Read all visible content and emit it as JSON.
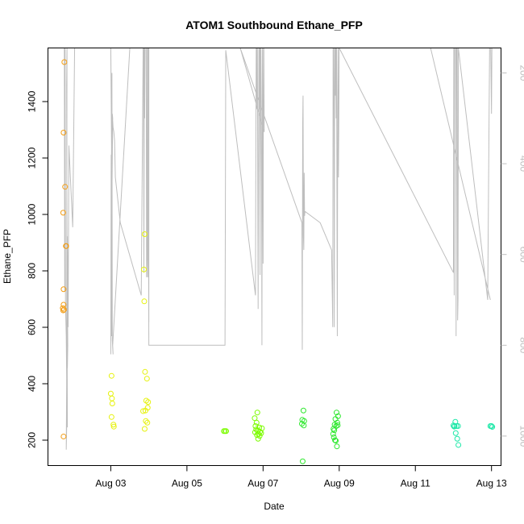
{
  "chart_data": {
    "type": "scatter",
    "title": "ATOM1 Southbound Ethane_PFP",
    "xlabel": "Date",
    "ylabel": "Ethane_PFP",
    "xlim": [
      1.35,
      13.25
    ],
    "ylim": [
      110,
      1590
    ],
    "x_ticks": [
      {
        "value": 3,
        "label": "Aug 03"
      },
      {
        "value": 5,
        "label": "Aug 05"
      },
      {
        "value": 7,
        "label": "Aug 07"
      },
      {
        "value": 9,
        "label": "Aug 09"
      },
      {
        "value": 11,
        "label": "Aug 11"
      },
      {
        "value": 13,
        "label": "Aug 13"
      }
    ],
    "y_ticks": [
      200,
      400,
      600,
      800,
      1000,
      1200,
      1400
    ],
    "right_axis": {
      "ylim": [
        1065,
        145
      ],
      "ticks": [
        200,
        400,
        600,
        800,
        1000
      ],
      "color": "#bebebe"
    },
    "points": [
      {
        "x": 1.78,
        "y": 1540,
        "color": "#f39c12"
      },
      {
        "x": 1.76,
        "y": 1290,
        "color": "#f39c12"
      },
      {
        "x": 1.8,
        "y": 1098,
        "color": "#f39c12"
      },
      {
        "x": 1.75,
        "y": 1006,
        "color": "#f39c12"
      },
      {
        "x": 1.82,
        "y": 888,
        "color": "#f39c12"
      },
      {
        "x": 1.83,
        "y": 888,
        "color": "#f39c12"
      },
      {
        "x": 1.76,
        "y": 735,
        "color": "#f39c12"
      },
      {
        "x": 1.76,
        "y": 680,
        "color": "#f39c12"
      },
      {
        "x": 1.74,
        "y": 668,
        "color": "#f39c12"
      },
      {
        "x": 1.77,
        "y": 663,
        "color": "#f39c12"
      },
      {
        "x": 1.75,
        "y": 660,
        "color": "#f39c12"
      },
      {
        "x": 1.76,
        "y": 213,
        "color": "#f39c12"
      },
      {
        "x": 3.02,
        "y": 428,
        "color": "#e6f20d"
      },
      {
        "x": 3.0,
        "y": 365,
        "color": "#e6f20d"
      },
      {
        "x": 3.03,
        "y": 348,
        "color": "#e6f20d"
      },
      {
        "x": 3.04,
        "y": 330,
        "color": "#e6f20d"
      },
      {
        "x": 3.02,
        "y": 282,
        "color": "#e6f20d"
      },
      {
        "x": 3.07,
        "y": 255,
        "color": "#e6f20d"
      },
      {
        "x": 3.08,
        "y": 248,
        "color": "#e6f20d"
      },
      {
        "x": 3.89,
        "y": 930,
        "color": "#e6f20d"
      },
      {
        "x": 3.87,
        "y": 805,
        "color": "#e6f20d"
      },
      {
        "x": 3.88,
        "y": 692,
        "color": "#e6f20d"
      },
      {
        "x": 3.9,
        "y": 442,
        "color": "#e6f20d"
      },
      {
        "x": 3.95,
        "y": 418,
        "color": "#e6f20d"
      },
      {
        "x": 3.93,
        "y": 340,
        "color": "#e6f20d"
      },
      {
        "x": 3.98,
        "y": 335,
        "color": "#e6f20d"
      },
      {
        "x": 3.97,
        "y": 315,
        "color": "#e6f20d"
      },
      {
        "x": 3.91,
        "y": 305,
        "color": "#e6f20d"
      },
      {
        "x": 3.85,
        "y": 303,
        "color": "#e6f20d"
      },
      {
        "x": 3.92,
        "y": 268,
        "color": "#e6f20d"
      },
      {
        "x": 3.96,
        "y": 262,
        "color": "#e6f20d"
      },
      {
        "x": 3.89,
        "y": 240,
        "color": "#e6f20d"
      },
      {
        "x": 5.97,
        "y": 232,
        "color": "#7cfc00"
      },
      {
        "x": 6.0,
        "y": 232,
        "color": "#7cfc00"
      },
      {
        "x": 6.03,
        "y": 232,
        "color": "#7cfc00"
      },
      {
        "x": 6.85,
        "y": 298,
        "color": "#7cfc00"
      },
      {
        "x": 6.78,
        "y": 278,
        "color": "#7cfc00"
      },
      {
        "x": 6.83,
        "y": 262,
        "color": "#7cfc00"
      },
      {
        "x": 6.8,
        "y": 250,
        "color": "#7cfc00"
      },
      {
        "x": 6.9,
        "y": 245,
        "color": "#7cfc00"
      },
      {
        "x": 6.97,
        "y": 242,
        "color": "#7cfc00"
      },
      {
        "x": 6.82,
        "y": 238,
        "color": "#7cfc00"
      },
      {
        "x": 6.86,
        "y": 233,
        "color": "#7cfc00"
      },
      {
        "x": 6.92,
        "y": 230,
        "color": "#7cfc00"
      },
      {
        "x": 6.79,
        "y": 228,
        "color": "#7cfc00"
      },
      {
        "x": 6.95,
        "y": 225,
        "color": "#7cfc00"
      },
      {
        "x": 6.88,
        "y": 222,
        "color": "#7cfc00"
      },
      {
        "x": 6.84,
        "y": 218,
        "color": "#7cfc00"
      },
      {
        "x": 6.91,
        "y": 215,
        "color": "#7cfc00"
      },
      {
        "x": 6.87,
        "y": 205,
        "color": "#7cfc00"
      },
      {
        "x": 8.06,
        "y": 305,
        "color": "#2ee82e"
      },
      {
        "x": 8.03,
        "y": 272,
        "color": "#2ee82e"
      },
      {
        "x": 8.08,
        "y": 268,
        "color": "#2ee82e"
      },
      {
        "x": 8.02,
        "y": 258,
        "color": "#2ee82e"
      },
      {
        "x": 8.07,
        "y": 252,
        "color": "#2ee82e"
      },
      {
        "x": 8.04,
        "y": 125,
        "color": "#2ee82e"
      },
      {
        "x": 8.93,
        "y": 298,
        "color": "#2ee82e"
      },
      {
        "x": 8.97,
        "y": 285,
        "color": "#2ee82e"
      },
      {
        "x": 8.9,
        "y": 275,
        "color": "#2ee82e"
      },
      {
        "x": 8.95,
        "y": 262,
        "color": "#2ee82e"
      },
      {
        "x": 8.88,
        "y": 255,
        "color": "#2ee82e"
      },
      {
        "x": 8.96,
        "y": 253,
        "color": "#2ee82e"
      },
      {
        "x": 8.92,
        "y": 250,
        "color": "#2ee82e"
      },
      {
        "x": 8.85,
        "y": 240,
        "color": "#2ee82e"
      },
      {
        "x": 8.87,
        "y": 235,
        "color": "#2ee82e"
      },
      {
        "x": 8.84,
        "y": 222,
        "color": "#2ee82e"
      },
      {
        "x": 8.86,
        "y": 210,
        "color": "#2ee82e"
      },
      {
        "x": 8.89,
        "y": 200,
        "color": "#2ee82e"
      },
      {
        "x": 8.91,
        "y": 198,
        "color": "#2ee82e"
      },
      {
        "x": 8.94,
        "y": 178,
        "color": "#2ee82e"
      },
      {
        "x": 12.05,
        "y": 265,
        "color": "#1ee8a8"
      },
      {
        "x": 12.0,
        "y": 252,
        "color": "#1ee8a8"
      },
      {
        "x": 12.03,
        "y": 250,
        "color": "#1ee8a8"
      },
      {
        "x": 12.08,
        "y": 250,
        "color": "#1ee8a8"
      },
      {
        "x": 12.12,
        "y": 250,
        "color": "#1ee8a8"
      },
      {
        "x": 12.02,
        "y": 248,
        "color": "#1ee8a8"
      },
      {
        "x": 12.06,
        "y": 225,
        "color": "#1ee8a8"
      },
      {
        "x": 12.1,
        "y": 205,
        "color": "#1ee8a8"
      },
      {
        "x": 12.13,
        "y": 183,
        "color": "#1ee8a8"
      },
      {
        "x": 12.97,
        "y": 250,
        "color": "#1ee8a8"
      },
      {
        "x": 13.0,
        "y": 250,
        "color": "#1ee8a8"
      },
      {
        "x": 13.02,
        "y": 247,
        "color": "#1ee8a8"
      }
    ],
    "profile_line": [
      [
        1.78,
        145
      ],
      [
        1.79,
        680
      ],
      [
        1.8,
        145
      ],
      [
        1.81,
        710
      ],
      [
        1.83,
        780
      ],
      [
        1.85,
        945
      ],
      [
        1.83,
        1030
      ],
      [
        1.84,
        900
      ],
      [
        1.86,
        670
      ],
      [
        1.87,
        800
      ],
      [
        1.86,
        850
      ],
      [
        1.85,
        575
      ],
      [
        1.87,
        640
      ],
      [
        1.88,
        700
      ],
      [
        1.86,
        560
      ],
      [
        1.85,
        610
      ],
      [
        1.84,
        230
      ],
      [
        1.85,
        145
      ],
      [
        1.84,
        980
      ],
      [
        1.86,
        980
      ],
      [
        1.85,
        670
      ],
      [
        1.88,
        760
      ],
      [
        1.9,
        360
      ],
      [
        2.0,
        540
      ],
      [
        2.05,
        145
      ],
      [
        3.5,
        145
      ],
      [
        3.05,
        800
      ],
      [
        3.06,
        820
      ],
      [
        3.04,
        790
      ],
      [
        3.03,
        200
      ],
      [
        3.02,
        780
      ],
      [
        3.01,
        380
      ],
      [
        3.0,
        820
      ],
      [
        3.02,
        360
      ],
      [
        3.01,
        230
      ],
      [
        3.0,
        145
      ],
      [
        3.03,
        475
      ],
      [
        3.05,
        300
      ],
      [
        3.04,
        290
      ],
      [
        3.06,
        320
      ],
      [
        3.08,
        330
      ],
      [
        3.1,
        350
      ],
      [
        3.12,
        430
      ],
      [
        3.25,
        530
      ],
      [
        3.8,
        690
      ],
      [
        3.85,
        145
      ],
      [
        3.86,
        145
      ],
      [
        3.87,
        640
      ],
      [
        3.88,
        145
      ],
      [
        3.89,
        300
      ],
      [
        3.9,
        145
      ],
      [
        3.91,
        145
      ],
      [
        3.92,
        140
      ],
      [
        3.93,
        145
      ],
      [
        3.94,
        650
      ],
      [
        3.95,
        600
      ],
      [
        3.96,
        145
      ],
      [
        3.97,
        650
      ],
      [
        3.98,
        145
      ],
      [
        3.99,
        145
      ],
      [
        4.0,
        750
      ],
      [
        4.0,
        145
      ],
      [
        3.98,
        280
      ],
      [
        4.0,
        800
      ],
      [
        6.0,
        800
      ],
      [
        6.01,
        490
      ],
      [
        6.02,
        150
      ],
      [
        6.8,
        690
      ],
      [
        6.81,
        390
      ],
      [
        6.82,
        145
      ],
      [
        6.83,
        280
      ],
      [
        6.84,
        145
      ],
      [
        6.85,
        145
      ],
      [
        6.86,
        410
      ],
      [
        6.87,
        720
      ],
      [
        6.88,
        430
      ],
      [
        6.89,
        145
      ],
      [
        6.9,
        280
      ],
      [
        6.91,
        145
      ],
      [
        6.92,
        645
      ],
      [
        6.93,
        145
      ],
      [
        6.94,
        145
      ],
      [
        6.95,
        275
      ],
      [
        6.96,
        450
      ],
      [
        6.97,
        800
      ],
      [
        6.98,
        145
      ],
      [
        6.99,
        330
      ],
      [
        7.0,
        620
      ],
      [
        7.01,
        145
      ],
      [
        7.02,
        145
      ],
      [
        7.03,
        330
      ],
      [
        6.4,
        145
      ],
      [
        8.02,
        530
      ],
      [
        8.03,
        810
      ],
      [
        8.04,
        320
      ],
      [
        8.05,
        250
      ],
      [
        8.06,
        560
      ],
      [
        8.07,
        590
      ],
      [
        8.08,
        420
      ],
      [
        8.09,
        515
      ],
      [
        8.1,
        505
      ],
      [
        8.5,
        530
      ],
      [
        8.8,
        590
      ],
      [
        8.82,
        700
      ],
      [
        8.83,
        760
      ],
      [
        8.84,
        145
      ],
      [
        8.85,
        145
      ],
      [
        8.86,
        280
      ],
      [
        8.87,
        760
      ],
      [
        8.88,
        145
      ],
      [
        8.89,
        145
      ],
      [
        8.9,
        250
      ],
      [
        8.91,
        145
      ],
      [
        8.92,
        300
      ],
      [
        8.93,
        145
      ],
      [
        8.94,
        470
      ],
      [
        8.95,
        780
      ],
      [
        8.96,
        280
      ],
      [
        8.97,
        145
      ],
      [
        8.98,
        430
      ],
      [
        8.99,
        310
      ],
      [
        9.0,
        145
      ],
      [
        12.0,
        640
      ],
      [
        12.01,
        145
      ],
      [
        12.02,
        690
      ],
      [
        12.03,
        145
      ],
      [
        12.06,
        145
      ],
      [
        12.07,
        780
      ],
      [
        12.08,
        145
      ],
      [
        12.1,
        145
      ],
      [
        12.11,
        745
      ],
      [
        12.12,
        700
      ],
      [
        12.13,
        145
      ],
      [
        12.9,
        700
      ],
      [
        12.95,
        145
      ],
      [
        12.98,
        145
      ],
      [
        13.0,
        290
      ],
      [
        13.01,
        145
      ],
      [
        11.4,
        145
      ],
      [
        12.97,
        700
      ]
    ]
  }
}
